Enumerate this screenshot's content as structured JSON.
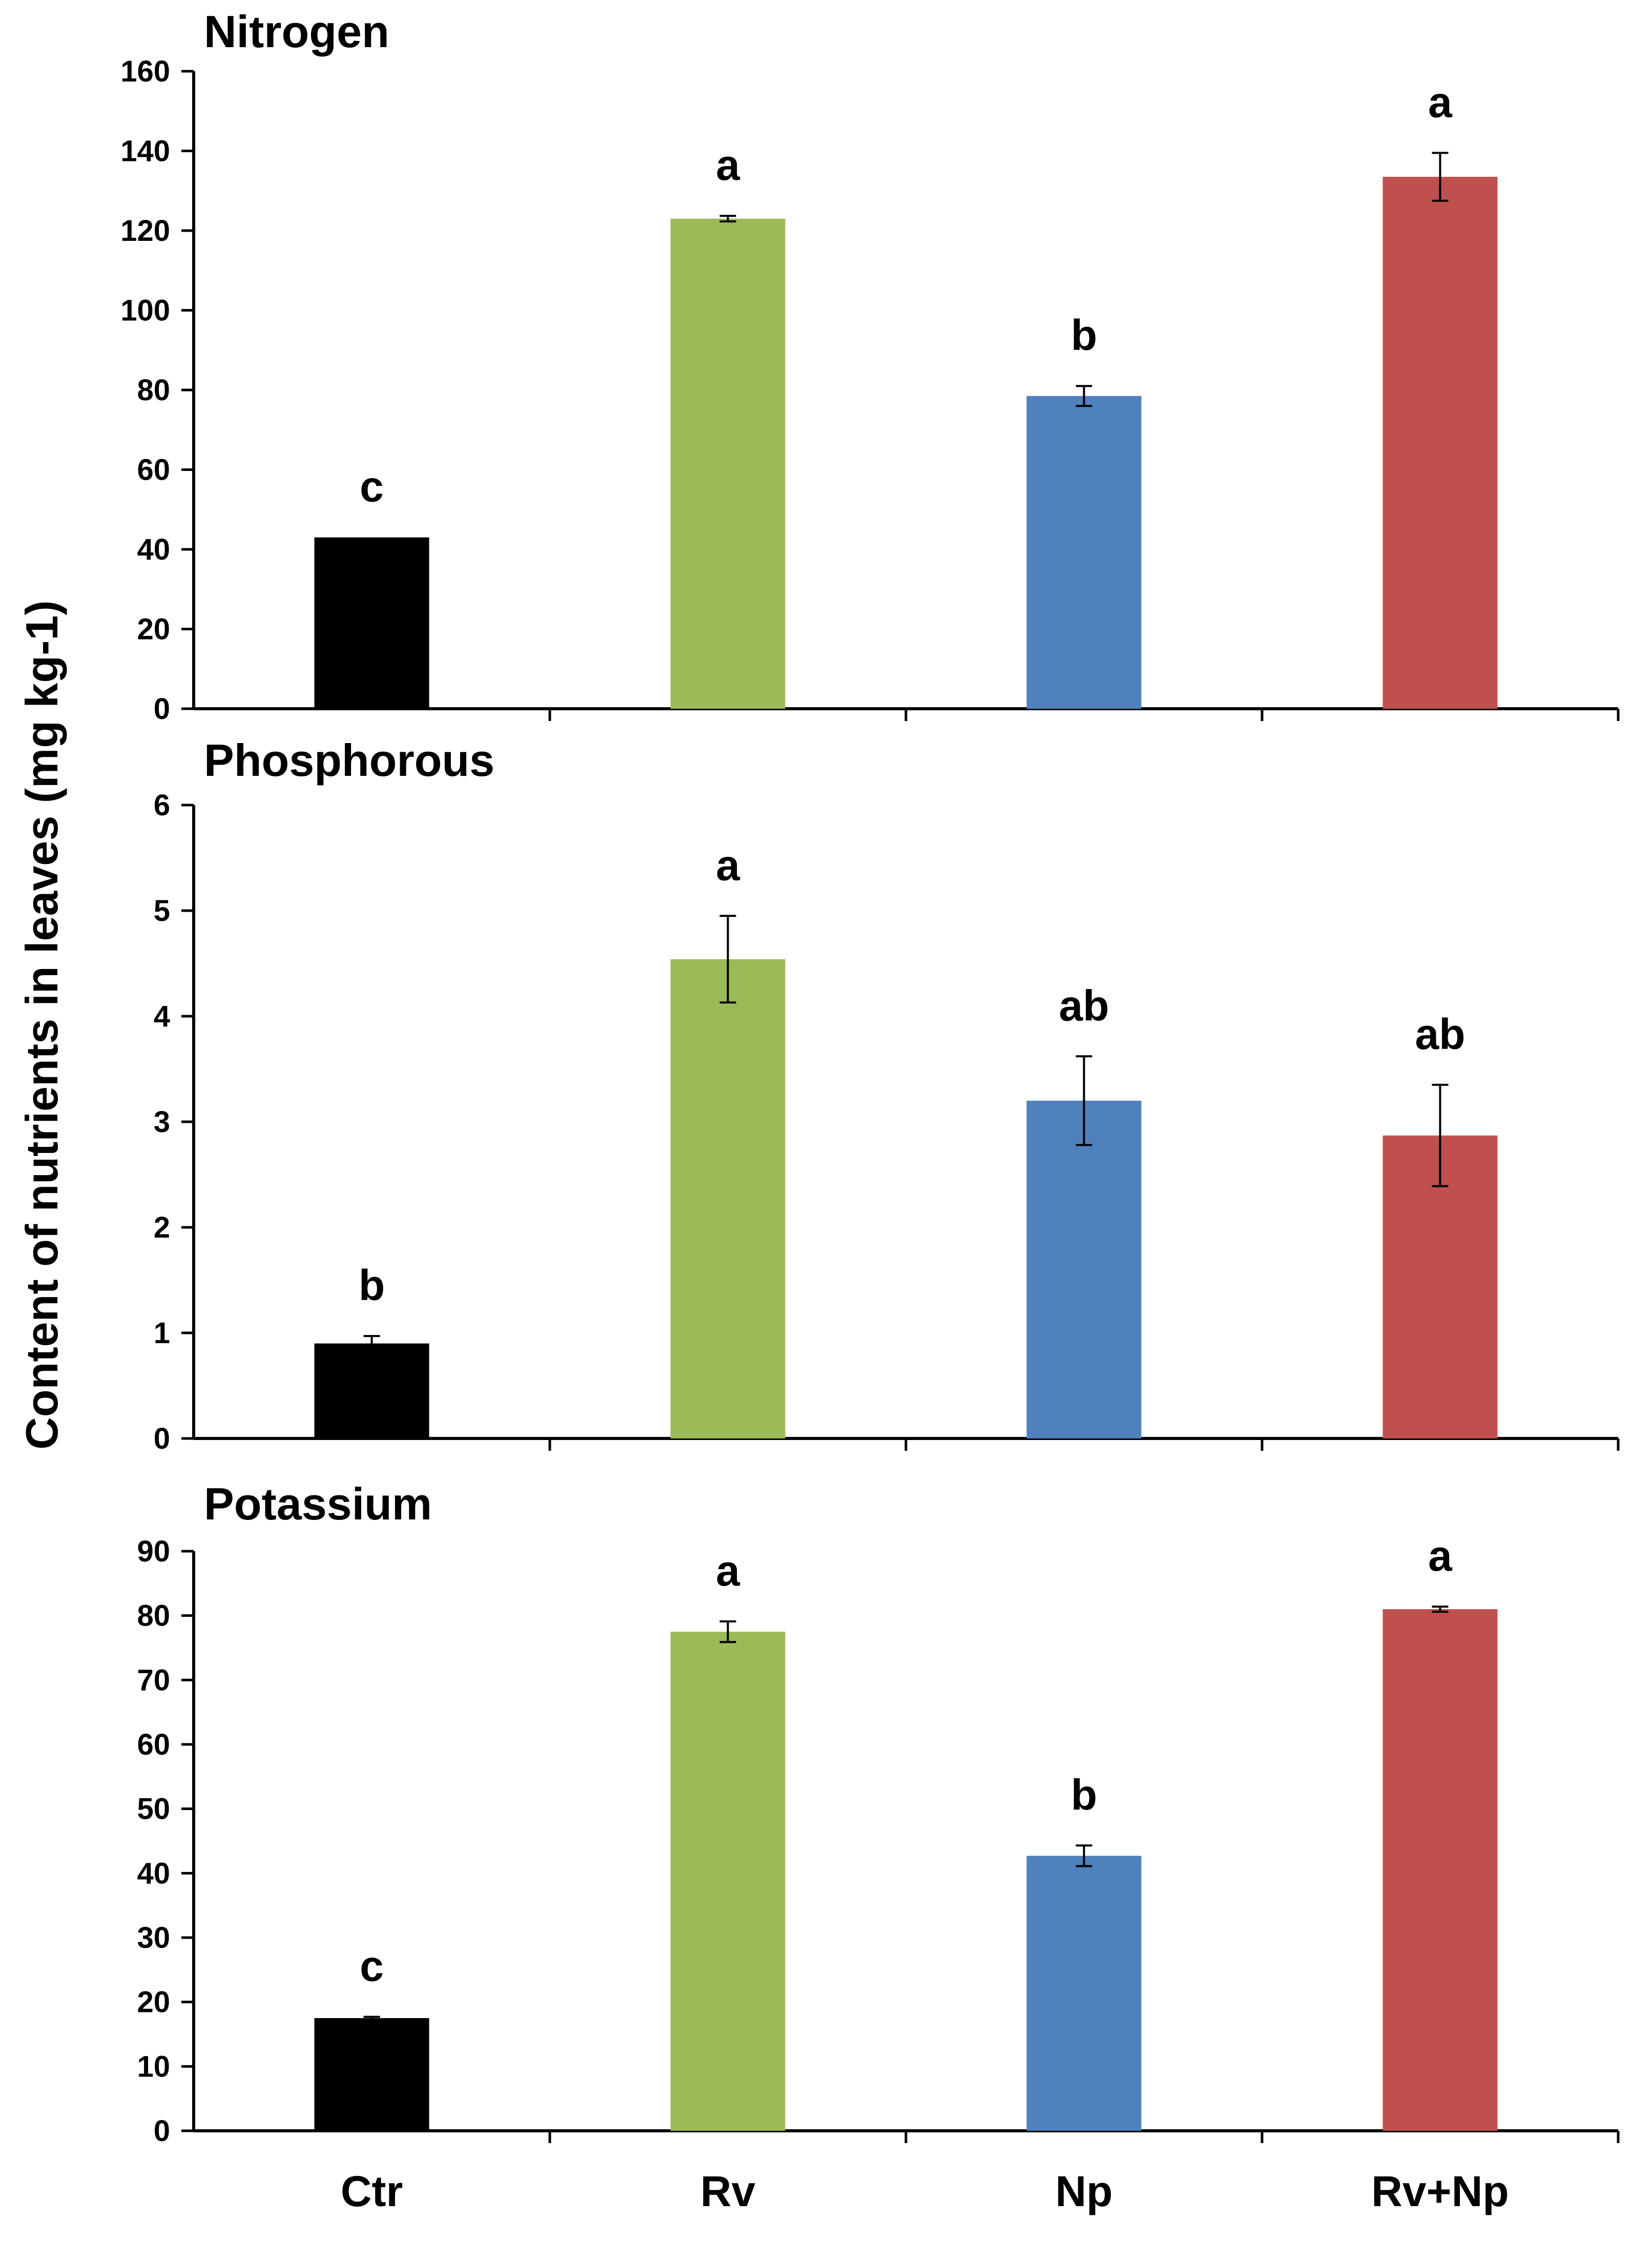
{
  "figure": {
    "ylabel": "Content of nutrients in leaves (mg kg-1)",
    "categories": [
      "Ctr",
      "Rv",
      "Np",
      "Rv+Np"
    ],
    "colors": [
      "#000000",
      "#9bbb59",
      "#4f81bd",
      "#c0504d"
    ]
  },
  "chart_data": [
    {
      "type": "bar",
      "title": "Nitrogen",
      "categories": [
        "Ctr",
        "Rv",
        "Np",
        "Rv+Np"
      ],
      "values": [
        43,
        123,
        78.5,
        133.5
      ],
      "errors": [
        0,
        0.7,
        2.5,
        6
      ],
      "significance": [
        "c",
        "a",
        "b",
        "a"
      ],
      "ylim": [
        0,
        160
      ],
      "yticks": [
        0,
        20,
        40,
        60,
        80,
        100,
        120,
        140,
        160
      ],
      "ylabel": "Content of nutrients in leaves (mg kg-1)",
      "xlabel": ""
    },
    {
      "type": "bar",
      "title": "Phosphorous",
      "categories": [
        "Ctr",
        "Rv",
        "Np",
        "Rv+Np"
      ],
      "values": [
        0.9,
        4.54,
        3.2,
        2.87
      ],
      "errors": [
        0.07,
        0.41,
        0.42,
        0.48
      ],
      "significance": [
        "b",
        "a",
        "ab",
        "ab"
      ],
      "ylim": [
        0,
        6
      ],
      "yticks": [
        0,
        1,
        2,
        3,
        4,
        5,
        6
      ],
      "ylabel": "Content of nutrients in leaves (mg kg-1)",
      "xlabel": ""
    },
    {
      "type": "bar",
      "title": "Potassium",
      "categories": [
        "Ctr",
        "Rv",
        "Np",
        "Rv+Np"
      ],
      "values": [
        17.5,
        77.5,
        42.7,
        81
      ],
      "errors": [
        0.2,
        1.6,
        1.6,
        0.4
      ],
      "significance": [
        "c",
        "a",
        "b",
        "a"
      ],
      "ylim": [
        0,
        90
      ],
      "yticks": [
        0,
        10,
        20,
        30,
        40,
        50,
        60,
        70,
        80,
        90
      ],
      "ylabel": "Content of nutrients in leaves (mg kg-1)",
      "xlabel": ""
    }
  ]
}
